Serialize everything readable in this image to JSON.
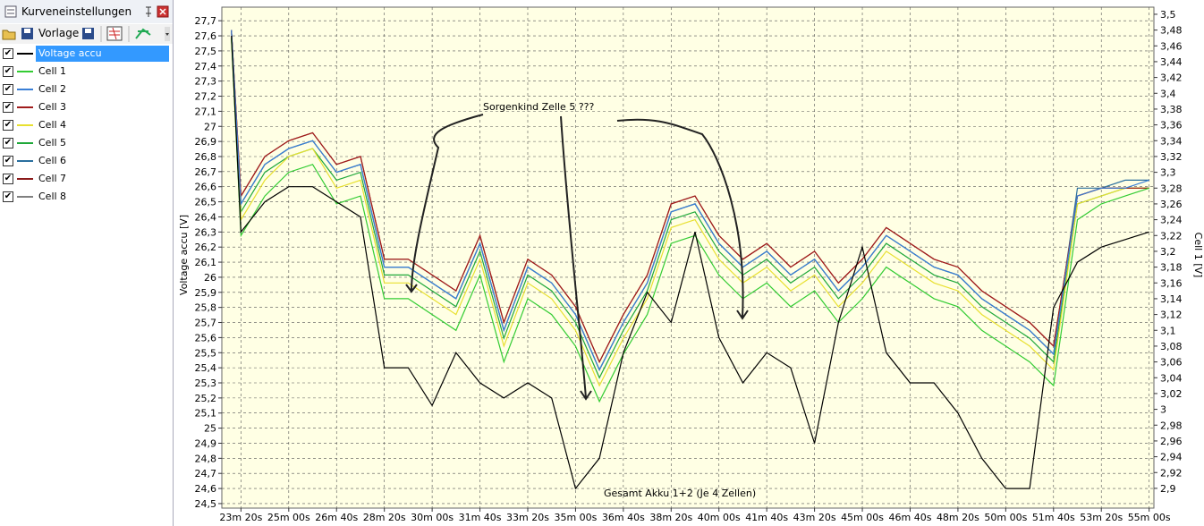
{
  "panel": {
    "title": "Kurveneinstellungen",
    "toolbar_label": "Vorlage"
  },
  "chart_data": {
    "type": "line",
    "y_label": "Voltage accu [V]",
    "y2_label": "Cell 1 [V]",
    "annotations": [
      "Sorgenkind Zelle 5 ???",
      "Gesamt Akku 1+2 (Je 4 Zellen)"
    ],
    "grid": true,
    "background": "#ffffe4",
    "xlim": [
      1360,
      3310
    ],
    "ylim": [
      24.47,
      27.79
    ],
    "y2lim": [
      2.875,
      3.509
    ],
    "xticks": [
      {
        "value": 1400,
        "label": "23m 20s"
      },
      {
        "value": 1500,
        "label": "25m 00s"
      },
      {
        "value": 1600,
        "label": "26m 40s"
      },
      {
        "value": 1700,
        "label": "28m 20s"
      },
      {
        "value": 1800,
        "label": "30m 00s"
      },
      {
        "value": 1900,
        "label": "31m 40s"
      },
      {
        "value": 2000,
        "label": "33m 20s"
      },
      {
        "value": 2100,
        "label": "35m 00s"
      },
      {
        "value": 2200,
        "label": "36m 40s"
      },
      {
        "value": 2300,
        "label": "38m 20s"
      },
      {
        "value": 2400,
        "label": "40m 00s"
      },
      {
        "value": 2500,
        "label": "41m 40s"
      },
      {
        "value": 2600,
        "label": "43m 20s"
      },
      {
        "value": 2700,
        "label": "45m 00s"
      },
      {
        "value": 2800,
        "label": "46m 40s"
      },
      {
        "value": 2900,
        "label": "48m 20s"
      },
      {
        "value": 3000,
        "label": "50m 00s"
      },
      {
        "value": 3100,
        "label": "51m 40s"
      },
      {
        "value": 3200,
        "label": "53m 20s"
      },
      {
        "value": 3300,
        "label": "55m 00s"
      }
    ],
    "yticks": [
      {
        "value": 24.5,
        "label": "24,5"
      },
      {
        "value": 24.6,
        "label": "24,6"
      },
      {
        "value": 24.7,
        "label": "24,7"
      },
      {
        "value": 24.8,
        "label": "24,8"
      },
      {
        "value": 24.9,
        "label": "24,9"
      },
      25,
      {
        "value": 25.1,
        "label": "25,1"
      },
      {
        "value": 25.2,
        "label": "25,2"
      },
      {
        "value": 25.3,
        "label": "25,3"
      },
      {
        "value": 25.4,
        "label": "25,4"
      },
      {
        "value": 25.5,
        "label": "25,5"
      },
      {
        "value": 25.6,
        "label": "25,6"
      },
      {
        "value": 25.7,
        "label": "25,7"
      },
      {
        "value": 25.8,
        "label": "25,8"
      },
      {
        "value": 25.9,
        "label": "25,9"
      },
      26,
      {
        "value": 26.1,
        "label": "26,1"
      },
      {
        "value": 26.2,
        "label": "26,2"
      },
      {
        "value": 26.3,
        "label": "26,3"
      },
      {
        "value": 26.4,
        "label": "26,4"
      },
      {
        "value": 26.5,
        "label": "26,5"
      },
      {
        "value": 26.6,
        "label": "26,6"
      },
      {
        "value": 26.7,
        "label": "26,7"
      },
      {
        "value": 26.8,
        "label": "26,8"
      },
      {
        "value": 26.9,
        "label": "26,9"
      },
      27,
      {
        "value": 27.1,
        "label": "27,1"
      },
      {
        "value": 27.2,
        "label": "27,2"
      },
      {
        "value": 27.3,
        "label": "27,3"
      },
      {
        "value": 27.4,
        "label": "27,4"
      },
      {
        "value": 27.5,
        "label": "27,5"
      },
      {
        "value": 27.6,
        "label": "27,6"
      },
      {
        "value": 27.7,
        "label": "27,7"
      }
    ],
    "y2ticks": [
      {
        "value": 2.9,
        "label": "2,9"
      },
      {
        "value": 2.92,
        "label": "2,92"
      },
      {
        "value": 2.94,
        "label": "2,94"
      },
      {
        "value": 2.96,
        "label": "2,96"
      },
      {
        "value": 2.98,
        "label": "2,98"
      },
      3,
      {
        "value": 3.02,
        "label": "3,02"
      },
      {
        "value": 3.04,
        "label": "3,04"
      },
      {
        "value": 3.06,
        "label": "3,06"
      },
      {
        "value": 3.08,
        "label": "3,08"
      },
      {
        "value": 3.1,
        "label": "3,1"
      },
      {
        "value": 3.12,
        "label": "3,12"
      },
      {
        "value": 3.14,
        "label": "3,14"
      },
      {
        "value": 3.16,
        "label": "3,16"
      },
      {
        "value": 3.18,
        "label": "3,18"
      },
      {
        "value": 3.2,
        "label": "3,2"
      },
      {
        "value": 3.22,
        "label": "3,22"
      },
      {
        "value": 3.24,
        "label": "3,24"
      },
      {
        "value": 3.26,
        "label": "3,26"
      },
      {
        "value": 3.28,
        "label": "3,28"
      },
      {
        "value": 3.3,
        "label": "3,3"
      },
      {
        "value": 3.32,
        "label": "3,32"
      },
      {
        "value": 3.34,
        "label": "3,34"
      },
      {
        "value": 3.36,
        "label": "3,36"
      },
      {
        "value": 3.38,
        "label": "3,38"
      },
      {
        "value": 3.4,
        "label": "3,4"
      },
      {
        "value": 3.42,
        "label": "3,42"
      },
      {
        "value": 3.44,
        "label": "3,44"
      },
      {
        "value": 3.46,
        "label": "3,46"
      },
      {
        "value": 3.48,
        "label": "3,48"
      },
      {
        "value": 3.5,
        "label": "3,5"
      }
    ],
    "x": [
      1380,
      1400,
      1450,
      1500,
      1550,
      1600,
      1650,
      1700,
      1750,
      1800,
      1850,
      1900,
      1950,
      2000,
      2050,
      2100,
      2150,
      2200,
      2250,
      2300,
      2350,
      2400,
      2450,
      2500,
      2550,
      2600,
      2650,
      2700,
      2750,
      2800,
      2850,
      2900,
      2950,
      3000,
      3050,
      3100,
      3150,
      3200,
      3250,
      3300
    ],
    "series": [
      {
        "name": "Voltage accu",
        "color": "#000000",
        "values": [
          27.6,
          26.3,
          26.5,
          26.6,
          26.6,
          26.5,
          26.4,
          25.4,
          25.4,
          25.15,
          25.5,
          25.3,
          25.2,
          25.3,
          25.2,
          24.6,
          24.8,
          25.5,
          25.9,
          25.7,
          26.3,
          25.6,
          25.3,
          25.5,
          25.4,
          24.9,
          25.7,
          26.2,
          25.5,
          25.3,
          25.3,
          25.1,
          24.8,
          24.6,
          24.6,
          25.8,
          26.1,
          26.2,
          26.25,
          26.3
        ]
      },
      {
        "name": "Cell 1",
        "color": "#33cc33",
        "axis": "y2",
        "values": [
          3.47,
          3.22,
          3.27,
          3.3,
          3.31,
          3.26,
          3.27,
          3.14,
          3.14,
          3.12,
          3.1,
          3.17,
          3.06,
          3.14,
          3.12,
          3.08,
          3.01,
          3.07,
          3.12,
          3.21,
          3.22,
          3.17,
          3.14,
          3.16,
          3.13,
          3.15,
          3.11,
          3.14,
          3.18,
          3.16,
          3.14,
          3.13,
          3.1,
          3.08,
          3.06,
          3.03,
          3.24,
          3.26,
          3.27,
          3.28
        ]
      },
      {
        "name": "Cell 2",
        "color": "#3a7fd6",
        "axis": "y2",
        "values": [
          3.48,
          3.26,
          3.31,
          3.33,
          3.34,
          3.3,
          3.31,
          3.18,
          3.18,
          3.16,
          3.14,
          3.21,
          3.1,
          3.18,
          3.16,
          3.12,
          3.05,
          3.11,
          3.16,
          3.25,
          3.26,
          3.21,
          3.18,
          3.2,
          3.17,
          3.19,
          3.15,
          3.18,
          3.22,
          3.2,
          3.18,
          3.17,
          3.14,
          3.12,
          3.1,
          3.07,
          3.27,
          3.28,
          3.28,
          3.29
        ]
      },
      {
        "name": "Cell 3",
        "color": "#a01c1c",
        "axis": "y2",
        "values": [
          3.48,
          3.27,
          3.32,
          3.34,
          3.35,
          3.31,
          3.32,
          3.19,
          3.19,
          3.17,
          3.15,
          3.22,
          3.11,
          3.19,
          3.17,
          3.13,
          3.06,
          3.12,
          3.17,
          3.26,
          3.27,
          3.22,
          3.19,
          3.21,
          3.18,
          3.2,
          3.16,
          3.19,
          3.23,
          3.21,
          3.19,
          3.18,
          3.15,
          3.13,
          3.11,
          3.08,
          3.27,
          3.28,
          3.28,
          3.28
        ]
      },
      {
        "name": "Cell 4",
        "color": "#e8e030",
        "axis": "y2",
        "values": [
          3.47,
          3.24,
          3.29,
          3.32,
          3.33,
          3.28,
          3.29,
          3.16,
          3.16,
          3.14,
          3.12,
          3.19,
          3.08,
          3.16,
          3.14,
          3.1,
          3.03,
          3.09,
          3.14,
          3.23,
          3.24,
          3.19,
          3.16,
          3.18,
          3.15,
          3.17,
          3.13,
          3.16,
          3.2,
          3.18,
          3.16,
          3.15,
          3.12,
          3.1,
          3.08,
          3.05,
          3.26,
          3.27,
          3.28,
          3.28
        ]
      },
      {
        "name": "Cell 5",
        "color": "#1fa83a",
        "axis": "y2",
        "values": [
          3.47,
          3.25,
          3.3,
          3.32,
          3.33,
          3.29,
          3.3,
          3.17,
          3.17,
          3.15,
          3.13,
          3.2,
          3.09,
          3.17,
          3.15,
          3.11,
          3.04,
          3.1,
          3.15,
          3.24,
          3.25,
          3.2,
          3.17,
          3.19,
          3.16,
          3.18,
          3.14,
          3.17,
          3.21,
          3.19,
          3.17,
          3.16,
          3.13,
          3.11,
          3.09,
          3.06,
          3.26,
          3.27,
          3.28,
          3.28
        ]
      },
      {
        "name": "Cell 6",
        "color": "#2a6f9e",
        "axis": "y2",
        "values": [
          3.48,
          3.26,
          3.31,
          3.33,
          3.34,
          3.3,
          3.31,
          3.18,
          3.18,
          3.16,
          3.14,
          3.21,
          3.1,
          3.18,
          3.16,
          3.12,
          3.05,
          3.11,
          3.16,
          3.25,
          3.26,
          3.21,
          3.18,
          3.2,
          3.17,
          3.19,
          3.15,
          3.18,
          3.22,
          3.2,
          3.18,
          3.17,
          3.14,
          3.12,
          3.1,
          3.07,
          3.28,
          3.28,
          3.29,
          3.29
        ]
      },
      {
        "name": "Cell 7",
        "color": "#8b1a1a",
        "axis": "y2",
        "values": [
          3.48,
          3.27,
          3.32,
          3.34,
          3.35,
          3.31,
          3.32,
          3.19,
          3.19,
          3.17,
          3.15,
          3.22,
          3.11,
          3.19,
          3.17,
          3.13,
          3.06,
          3.12,
          3.17,
          3.26,
          3.27,
          3.22,
          3.19,
          3.21,
          3.18,
          3.2,
          3.16,
          3.19,
          3.23,
          3.21,
          3.19,
          3.18,
          3.15,
          3.13,
          3.11,
          3.08,
          3.27,
          3.28,
          3.28,
          3.28
        ]
      },
      {
        "name": "Cell 8",
        "color": "#808080",
        "axis": "y2",
        "values": [
          3.48,
          3.26,
          3.31,
          3.33,
          3.34,
          3.3,
          3.31,
          3.18,
          3.18,
          3.16,
          3.14,
          3.21,
          3.1,
          3.18,
          3.16,
          3.12,
          3.05,
          3.11,
          3.16,
          3.25,
          3.26,
          3.21,
          3.18,
          3.2,
          3.17,
          3.19,
          3.15,
          3.18,
          3.22,
          3.2,
          3.18,
          3.17,
          3.14,
          3.12,
          3.1,
          3.07,
          3.27,
          3.28,
          3.28,
          3.28
        ]
      }
    ]
  }
}
